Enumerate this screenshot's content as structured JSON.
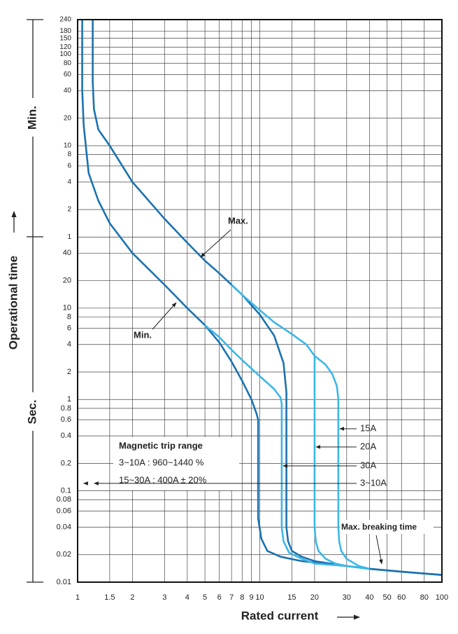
{
  "chart_data": {
    "type": "line",
    "x_label": "Rated current",
    "y_label": "Operational time",
    "y_section_labels": [
      "Min.",
      "Sec."
    ],
    "log_x": true,
    "log_y": true,
    "grid": true,
    "xlim": [
      1,
      100
    ],
    "xticks": [
      1,
      1.5,
      2,
      3,
      4,
      5,
      6,
      7,
      8,
      9,
      10,
      15,
      20,
      30,
      40,
      50,
      60,
      80,
      100
    ],
    "ylim": [
      0.01,
      14400
    ],
    "yticks": [
      {
        "value": 14400,
        "label": "240"
      },
      {
        "value": 10800,
        "label": "180"
      },
      {
        "value": 9000,
        "label": "150"
      },
      {
        "value": 7200,
        "label": "120"
      },
      {
        "value": 6000,
        "label": "100"
      },
      {
        "value": 4800,
        "label": "80"
      },
      {
        "value": 3600,
        "label": "60"
      },
      {
        "value": 2400,
        "label": "40"
      },
      {
        "value": 1200,
        "label": "20"
      },
      {
        "value": 600,
        "label": "10"
      },
      {
        "value": 480,
        "label": "8"
      },
      {
        "value": 360,
        "label": "6"
      },
      {
        "value": 240,
        "label": "4"
      },
      {
        "value": 120,
        "label": "2"
      },
      {
        "value": 60,
        "label": "1"
      },
      40,
      20,
      10,
      8,
      6,
      4,
      2,
      1,
      0.8,
      0.6,
      0.4,
      0.2,
      0.1,
      0.08,
      0.06,
      0.04,
      0.02,
      0.01
    ],
    "series": [
      {
        "name": "3~10A",
        "color": "#1b72b0",
        "x": [
          1.21,
          1.21,
          1.23,
          1.3,
          1.5,
          2,
          3,
          4,
          5,
          6,
          7,
          8,
          10,
          12,
          13.5,
          14,
          14,
          14.3,
          15,
          17,
          20,
          30,
          40,
          60,
          100
        ],
        "values": [
          14400,
          3000,
          1500,
          900,
          600,
          240,
          95,
          52,
          33,
          24,
          18,
          14,
          8.5,
          5,
          2.5,
          1.2,
          0.04,
          0.028,
          0.022,
          0.019,
          0.017,
          0.015,
          0.014,
          0.013,
          0.012
        ]
      },
      {
        "color": "#1b72b0",
        "x": [
          1.06,
          1.06,
          1.08,
          1.15,
          1.3,
          1.5,
          2,
          3,
          4,
          5,
          6,
          7,
          8,
          9,
          9.6,
          9.8,
          9.8,
          10.2,
          11,
          13,
          17,
          30,
          40,
          60,
          100
        ],
        "values": [
          14400,
          2400,
          1000,
          300,
          150,
          85,
          40,
          18,
          10,
          6.5,
          4.2,
          2.6,
          1.6,
          1,
          0.7,
          0.6,
          0.05,
          0.03,
          0.022,
          0.019,
          0.017,
          0.015,
          0.014,
          0.013,
          0.012
        ]
      },
      {
        "name": "15A",
        "color": "#3cb6e6",
        "x": [
          7,
          8,
          10,
          12,
          15,
          18,
          20,
          23,
          25,
          26.5,
          27,
          27,
          27.3,
          28,
          30,
          35,
          40
        ],
        "values": [
          18,
          14,
          9.5,
          7,
          5.2,
          4,
          3,
          2.4,
          1.9,
          1.4,
          1,
          0.04,
          0.028,
          0.022,
          0.018,
          0.015,
          0.014
        ]
      },
      {
        "name": "20A",
        "color": "#3cb6e6",
        "x": [
          20,
          20,
          20.3,
          21,
          23,
          26,
          30,
          40
        ],
        "values": [
          3,
          0.04,
          0.028,
          0.022,
          0.018,
          0.016,
          0.015,
          0.014
        ]
      },
      {
        "name": "30A",
        "color": "#3cb6e6",
        "x": [
          5,
          6,
          7,
          8,
          10,
          12,
          13,
          13.2,
          13.2,
          13.5,
          14.5,
          17,
          20,
          30,
          40
        ],
        "values": [
          6.5,
          4.8,
          3.5,
          2.7,
          1.8,
          1.3,
          1.05,
          0.9,
          0.04,
          0.028,
          0.021,
          0.018,
          0.016,
          0.015,
          0.014
        ]
      }
    ],
    "annotations": [
      "Max.",
      "Min.",
      "Max. breaking time"
    ],
    "note": {
      "title": "Magnetic trip range",
      "lines": [
        "3~10A : 960~1440 %",
        "15~30A : 400A ± 20%"
      ]
    }
  }
}
